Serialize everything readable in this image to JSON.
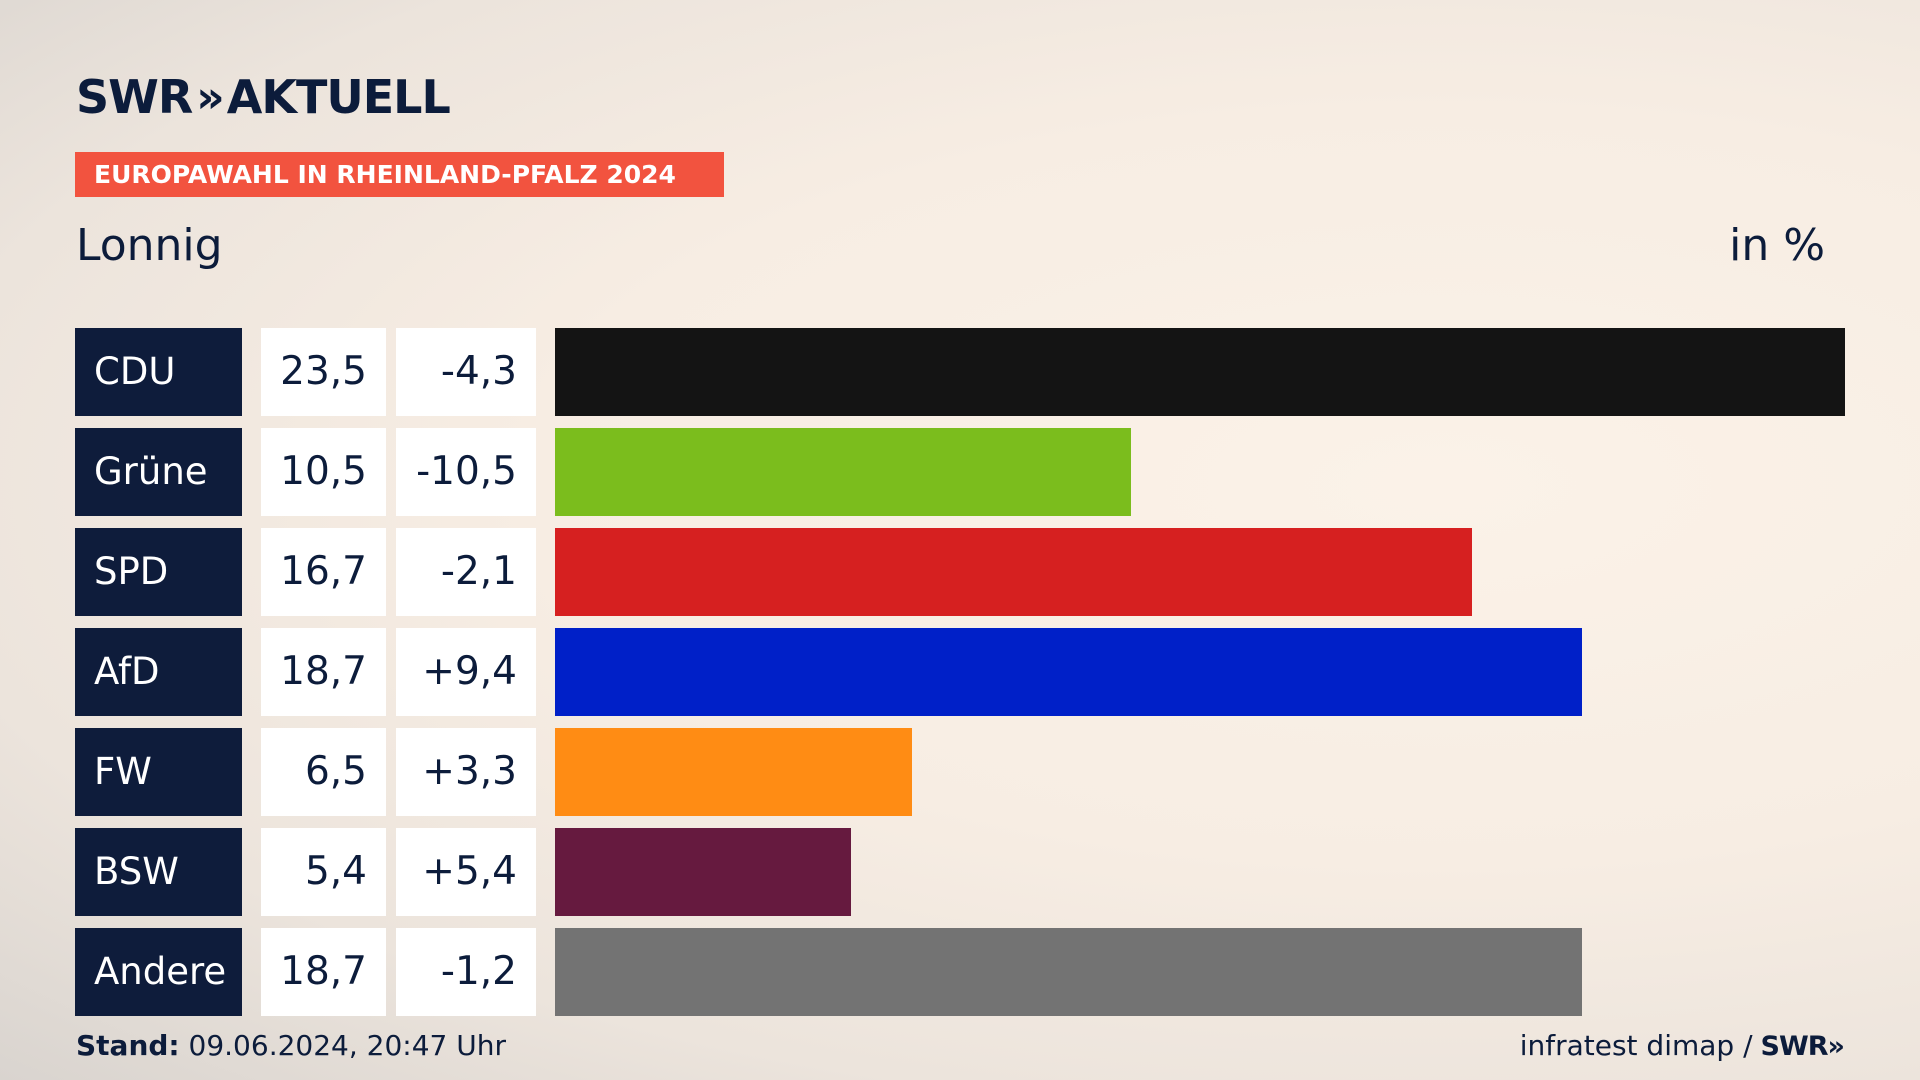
{
  "header": {
    "brand_swr": "SWR",
    "brand_chevrons": "»",
    "brand_aktuell": "AKTUELL",
    "subtitle": "EUROPAWAHL IN RHEINLAND-PFALZ 2024",
    "place": "Lonnig",
    "unit": "in %"
  },
  "chart_data": {
    "type": "bar",
    "orientation": "horizontal",
    "categories": [
      "CDU",
      "Grüne",
      "SPD",
      "AfD",
      "FW",
      "BSW",
      "Andere"
    ],
    "values": [
      23.5,
      10.5,
      16.7,
      18.7,
      6.5,
      5.4,
      18.7
    ],
    "value_labels": [
      "23,5",
      "10,5",
      "16,7",
      "18,7",
      "6,5",
      "5,4",
      "18,7"
    ],
    "diff_labels": [
      "-4,3",
      "-10,5",
      "-2,1",
      "+9,4",
      "+3,3",
      "+5,4",
      "-1,2"
    ],
    "colors": [
      "#141414",
      "#7bbd1d",
      "#d62020",
      "#0020c8",
      "#ff8c14",
      "#661a3f",
      "#737373"
    ],
    "xlim": [
      0,
      23.5
    ]
  },
  "footer": {
    "stand_label": "Stand:",
    "stand_value": "09.06.2024, 20:47 Uhr",
    "source": "infratest dimap /",
    "source_logo": "SWR»"
  }
}
